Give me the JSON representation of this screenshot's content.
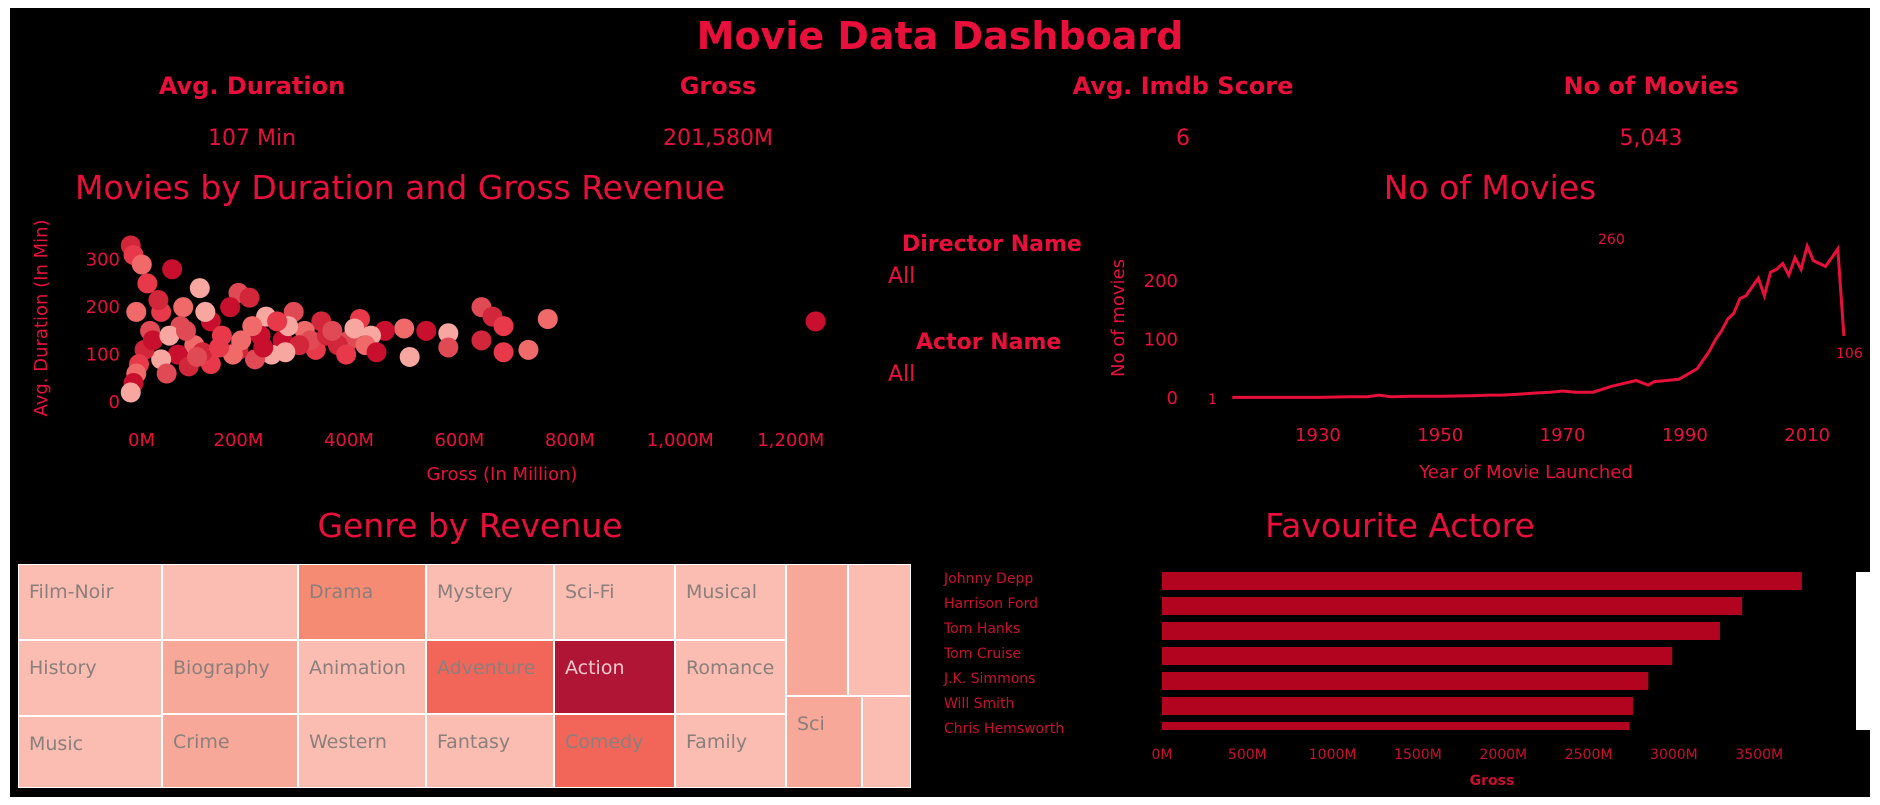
{
  "header": {
    "title": "Movie Data Dashboard"
  },
  "kpis": [
    {
      "label": "Avg. Duration",
      "value": "107 Min"
    },
    {
      "label": "Gross",
      "value": "201,580M"
    },
    {
      "label": "Avg. Imdb Score",
      "value": "6"
    },
    {
      "label": "No of Movies",
      "value": "5,043"
    }
  ],
  "filters": {
    "director": {
      "label": "Director Name",
      "value": "All"
    },
    "actor": {
      "label": "Actor  Name",
      "value": "All"
    }
  },
  "colors": {
    "accent": "#e8103a",
    "background": "#000000",
    "bar": "#b2041e",
    "scatter_dark": "#c8102e",
    "scatter_light": "#f7a6a0"
  },
  "chart_data": [
    {
      "type": "scatter",
      "title": "Movies by Duration and Gross Revenue",
      "xlabel": "Gross (In Million)",
      "ylabel": "Avg. Duration (In Min)",
      "xlim": [
        0,
        1300
      ],
      "ylim": [
        0,
        350
      ],
      "x_ticks": [
        "0M",
        "200M",
        "400M",
        "600M",
        "800M",
        "1,000M",
        "1,200M"
      ],
      "y_ticks": [
        "0",
        "100",
        "200",
        "300"
      ],
      "points": [
        [
          5,
          330
        ],
        [
          10,
          310
        ],
        [
          25,
          290
        ],
        [
          80,
          280
        ],
        [
          130,
          240
        ],
        [
          200,
          230
        ],
        [
          220,
          220
        ],
        [
          60,
          190
        ],
        [
          100,
          200
        ],
        [
          150,
          170
        ],
        [
          250,
          180
        ],
        [
          300,
          190
        ],
        [
          350,
          170
        ],
        [
          420,
          175
        ],
        [
          500,
          155
        ],
        [
          540,
          150
        ],
        [
          580,
          145
        ],
        [
          640,
          200
        ],
        [
          660,
          180
        ],
        [
          680,
          160
        ],
        [
          760,
          175
        ],
        [
          1245,
          170
        ],
        [
          510,
          95
        ],
        [
          580,
          115
        ],
        [
          640,
          130
        ],
        [
          680,
          105
        ],
        [
          725,
          110
        ],
        [
          465,
          150
        ],
        [
          440,
          140
        ],
        [
          400,
          130
        ],
        [
          380,
          120
        ],
        [
          340,
          110
        ],
        [
          320,
          150
        ],
        [
          280,
          130
        ],
        [
          260,
          100
        ],
        [
          230,
          90
        ],
        [
          200,
          110
        ],
        [
          170,
          140
        ],
        [
          120,
          120
        ],
        [
          90,
          100
        ],
        [
          60,
          90
        ],
        [
          40,
          150
        ],
        [
          30,
          110
        ],
        [
          20,
          80
        ],
        [
          15,
          60
        ],
        [
          10,
          40
        ],
        [
          5,
          20
        ],
        [
          70,
          60
        ],
        [
          110,
          75
        ],
        [
          150,
          80
        ],
        [
          190,
          100
        ],
        [
          240,
          140
        ],
        [
          290,
          160
        ],
        [
          330,
          130
        ],
        [
          360,
          140
        ],
        [
          395,
          100
        ],
        [
          430,
          120
        ],
        [
          450,
          105
        ],
        [
          410,
          155
        ],
        [
          370,
          150
        ],
        [
          310,
          120
        ],
        [
          270,
          170
        ],
        [
          225,
          160
        ],
        [
          185,
          200
        ],
        [
          140,
          190
        ],
        [
          95,
          160
        ],
        [
          55,
          215
        ],
        [
          35,
          250
        ],
        [
          15,
          190
        ],
        [
          45,
          130
        ],
        [
          75,
          140
        ],
        [
          105,
          150
        ],
        [
          135,
          105
        ],
        [
          165,
          115
        ],
        [
          205,
          130
        ],
        [
          245,
          115
        ],
        [
          285,
          105
        ],
        [
          125,
          95
        ]
      ]
    },
    {
      "type": "line",
      "title": "No of Movies",
      "xlabel": "Year of Movie Launched",
      "ylabel": "No of movies",
      "xlim": [
        1913,
        2017
      ],
      "ylim": [
        0,
        260
      ],
      "x_ticks": [
        "1930",
        "1950",
        "1970",
        "1990",
        "2010"
      ],
      "y_ticks": [
        "0",
        "100",
        "200"
      ],
      "annotations": [
        "1",
        "260",
        "106"
      ],
      "x": [
        1916,
        1920,
        1925,
        1930,
        1935,
        1938,
        1940,
        1942,
        1945,
        1950,
        1955,
        1958,
        1960,
        1962,
        1965,
        1968,
        1970,
        1972,
        1975,
        1978,
        1980,
        1982,
        1984,
        1985,
        1987,
        1989,
        1990,
        1992,
        1993,
        1994,
        1995,
        1996,
        1997,
        1998,
        1999,
        2000,
        2001,
        2002,
        2003,
        2004,
        2005,
        2006,
        2007,
        2008,
        2009,
        2010,
        2011,
        2012,
        2013,
        2014,
        2015,
        2016
      ],
      "y": [
        1,
        1,
        1,
        1,
        2,
        2,
        5,
        2,
        3,
        3,
        4,
        5,
        5,
        6,
        8,
        10,
        12,
        10,
        10,
        20,
        25,
        30,
        22,
        28,
        30,
        32,
        38,
        50,
        65,
        80,
        100,
        115,
        135,
        145,
        170,
        175,
        190,
        205,
        175,
        215,
        220,
        230,
        210,
        240,
        220,
        260,
        235,
        230,
        225,
        240,
        255,
        106
      ]
    },
    {
      "type": "heatmap",
      "title": "Genre by Revenue",
      "categories": [
        "Film-Noir",
        "",
        "Drama",
        "Mystery",
        "Sci-Fi",
        "Musical",
        "History",
        "Biography",
        "Animation",
        "Adventure",
        "Action",
        "Romance",
        "Music",
        "Crime",
        "Western",
        "Fantasy",
        "Comedy",
        "Family",
        "Sci"
      ],
      "values": [
        0.1,
        0.1,
        0.55,
        0.15,
        0.1,
        0.1,
        0.1,
        0.25,
        0.15,
        0.65,
        1.0,
        0.1,
        0.1,
        0.35,
        0.1,
        0.15,
        0.7,
        0.1,
        0.25
      ]
    },
    {
      "type": "bar",
      "title": "Favourite Actore",
      "xlabel": "Gross",
      "categories": [
        "Johnny Depp",
        "Harrison Ford",
        "Tom Hanks",
        "Tom Cruise",
        "J.K. Simmons",
        "Will Smith",
        "Chris Hemsworth"
      ],
      "values": [
        3750,
        3400,
        3270,
        2990,
        2850,
        2760,
        2740
      ],
      "x_ticks": [
        "0M",
        "500M",
        "1000M",
        "1500M",
        "2000M",
        "2500M",
        "3000M",
        "3500M"
      ],
      "xlim": [
        0,
        3950
      ]
    }
  ]
}
